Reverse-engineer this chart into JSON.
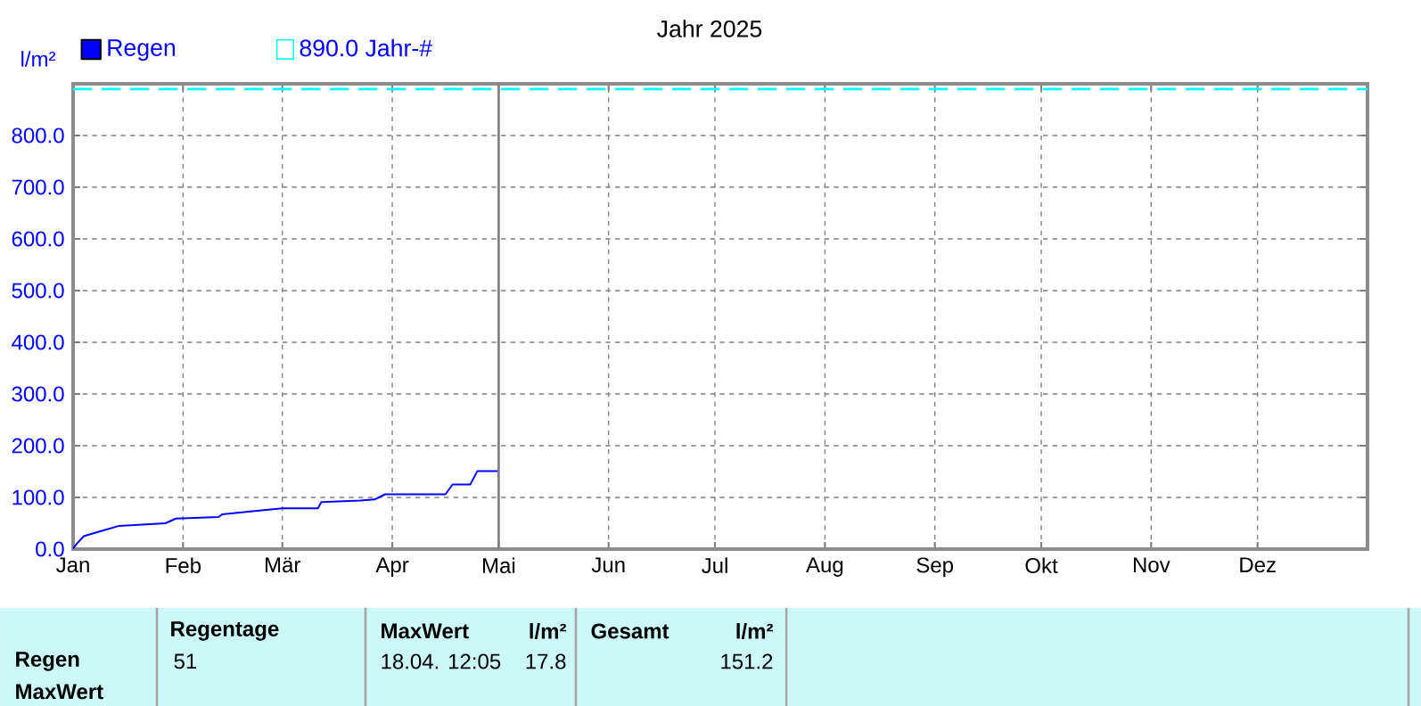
{
  "chart_data": {
    "type": "line",
    "title": "Jahr 2025",
    "ylabel": "l/m²",
    "x": [
      "2025-01-01",
      "2025-01-02",
      "2025-01-04",
      "2025-01-08",
      "2025-01-14",
      "2025-01-27",
      "2025-01-30",
      "2025-02-11",
      "2025-02-12",
      "2025-02-20",
      "2025-03-01",
      "2025-03-11",
      "2025-03-12",
      "2025-03-23",
      "2025-03-27",
      "2025-03-30",
      "2025-04-16",
      "2025-04-18",
      "2025-04-23",
      "2025-04-25",
      "2025-05-01"
    ],
    "series": [
      {
        "name": "Regen",
        "color": "#0000ff",
        "values": [
          1,
          10,
          25,
          33,
          45,
          50,
          59,
          62,
          67,
          73,
          79,
          79,
          91,
          94,
          96,
          106,
          106,
          125,
          125,
          151,
          151
        ]
      }
    ],
    "xlim": [
      "2025-01-01",
      "2026-01-01"
    ],
    "xticks": [
      {
        "value": "2025-01-01",
        "label": "Jan"
      },
      {
        "value": "2025-02-01",
        "label": "Feb"
      },
      {
        "value": "2025-03-01",
        "label": "Mär"
      },
      {
        "value": "2025-04-01",
        "label": "Apr"
      },
      {
        "value": "2025-05-01",
        "label": "Mai"
      },
      {
        "value": "2025-06-01",
        "label": "Jun"
      },
      {
        "value": "2025-07-01",
        "label": "Jul"
      },
      {
        "value": "2025-08-01",
        "label": "Aug"
      },
      {
        "value": "2025-09-01",
        "label": "Sep"
      },
      {
        "value": "2025-10-01",
        "label": "Okt"
      },
      {
        "value": "2025-11-01",
        "label": "Nov"
      },
      {
        "value": "2025-12-01",
        "label": "Dez"
      }
    ],
    "ylim": [
      0,
      900
    ],
    "yticks": [
      {
        "value": 0,
        "label": "0.0"
      },
      {
        "value": 100,
        "label": "100.0"
      },
      {
        "value": 200,
        "label": "200.0"
      },
      {
        "value": 300,
        "label": "300.0"
      },
      {
        "value": 400,
        "label": "400.0"
      },
      {
        "value": 500,
        "label": "500.0"
      },
      {
        "value": 600,
        "label": "600.0"
      },
      {
        "value": 700,
        "label": "700.0"
      },
      {
        "value": 800,
        "label": "800.0"
      }
    ],
    "ref_lines": [
      {
        "axis": "y",
        "value": 890,
        "label": "890.0 Jahr-#",
        "color": "#00ffff",
        "line_style": "dashed"
      },
      {
        "axis": "x",
        "value": "2025-05-01",
        "color": "#808080"
      }
    ],
    "grid": true,
    "legend": "top left",
    "marker": "none",
    "line_style": "solid",
    "annotations": [
      "Regen",
      "MaxWert",
      "Regentage",
      "51",
      "MaxWert",
      "l/m²",
      "18.04.  12:05",
      "17.8",
      "Gesamt",
      "l/m²",
      "151.2"
    ]
  }
}
